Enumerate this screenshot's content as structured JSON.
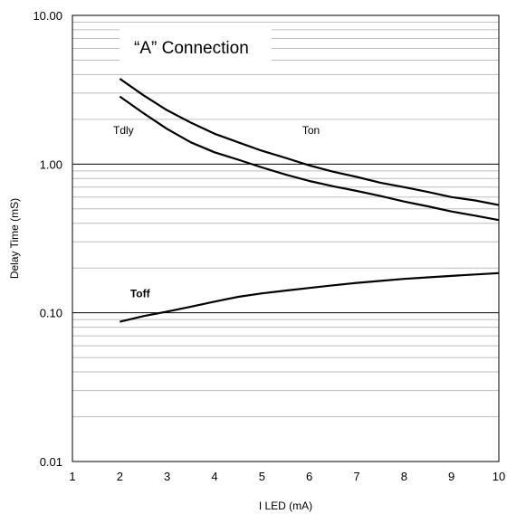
{
  "chart_data": {
    "type": "line",
    "title": "“A” Connection",
    "xlabel": "I LED (mA)",
    "ylabel": "Delay Time (mS)",
    "xlim": [
      1,
      10
    ],
    "ylim": [
      0.01,
      10
    ],
    "y_scale": "log",
    "x_ticks": [
      "1",
      "2",
      "3",
      "4",
      "5",
      "6",
      "7",
      "8",
      "9",
      "10"
    ],
    "y_ticks": [
      "0.01",
      "0.10",
      "1.00",
      "10.00"
    ],
    "grid": true,
    "series": [
      {
        "name": "Ton",
        "x": [
          2,
          2.5,
          3,
          3.5,
          4,
          4.5,
          5,
          5.5,
          6,
          6.5,
          7,
          7.5,
          8,
          8.5,
          9,
          9.5,
          10
        ],
        "y": [
          3.75,
          2.9,
          2.3,
          1.9,
          1.6,
          1.4,
          1.23,
          1.1,
          0.98,
          0.89,
          0.82,
          0.75,
          0.7,
          0.65,
          0.6,
          0.57,
          0.53
        ]
      },
      {
        "name": "Tdly",
        "x": [
          2,
          2.5,
          3,
          3.5,
          4,
          4.5,
          5,
          5.5,
          6,
          6.5,
          7,
          7.5,
          8,
          8.5,
          9,
          9.5,
          10
        ],
        "y": [
          2.85,
          2.2,
          1.72,
          1.4,
          1.2,
          1.07,
          0.95,
          0.85,
          0.77,
          0.71,
          0.66,
          0.61,
          0.56,
          0.52,
          0.48,
          0.45,
          0.42
        ]
      },
      {
        "name": "Toff",
        "x": [
          2,
          2.5,
          3,
          3.5,
          4,
          4.5,
          5,
          5.5,
          6,
          6.5,
          7,
          7.5,
          8,
          8.5,
          9,
          9.5,
          10
        ],
        "y": [
          0.087,
          0.095,
          0.102,
          0.11,
          0.119,
          0.128,
          0.135,
          0.141,
          0.147,
          0.153,
          0.159,
          0.164,
          0.169,
          0.173,
          0.177,
          0.181,
          0.185
        ]
      }
    ]
  }
}
